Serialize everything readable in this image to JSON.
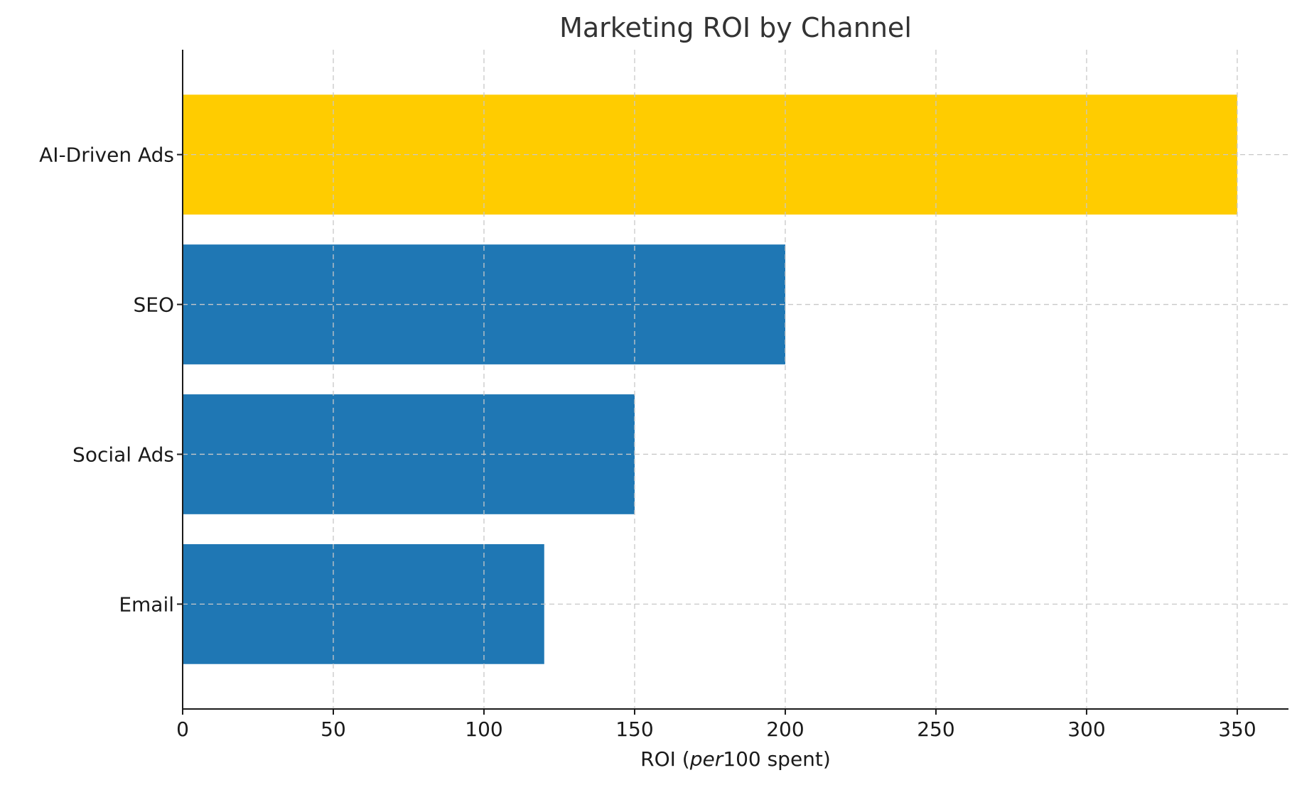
{
  "chart_data": {
    "type": "bar",
    "orientation": "horizontal",
    "title": "Marketing ROI by Channel",
    "xlabel": "ROI (per100 spent)",
    "xlabel_parts": {
      "prefix": "ROI (",
      "italic": "per",
      "suffix": "100 spent)"
    },
    "ylabel": "",
    "categories": [
      "Email",
      "Social Ads",
      "SEO",
      "AI-Driven Ads"
    ],
    "values": [
      120,
      150,
      200,
      350
    ],
    "colors": [
      "#1f77b4",
      "#1f77b4",
      "#1f77b4",
      "#ffcc00"
    ],
    "xlim": [
      0,
      367
    ],
    "xticks": [
      0,
      50,
      100,
      150,
      200,
      250,
      300,
      350
    ],
    "grid": true
  }
}
